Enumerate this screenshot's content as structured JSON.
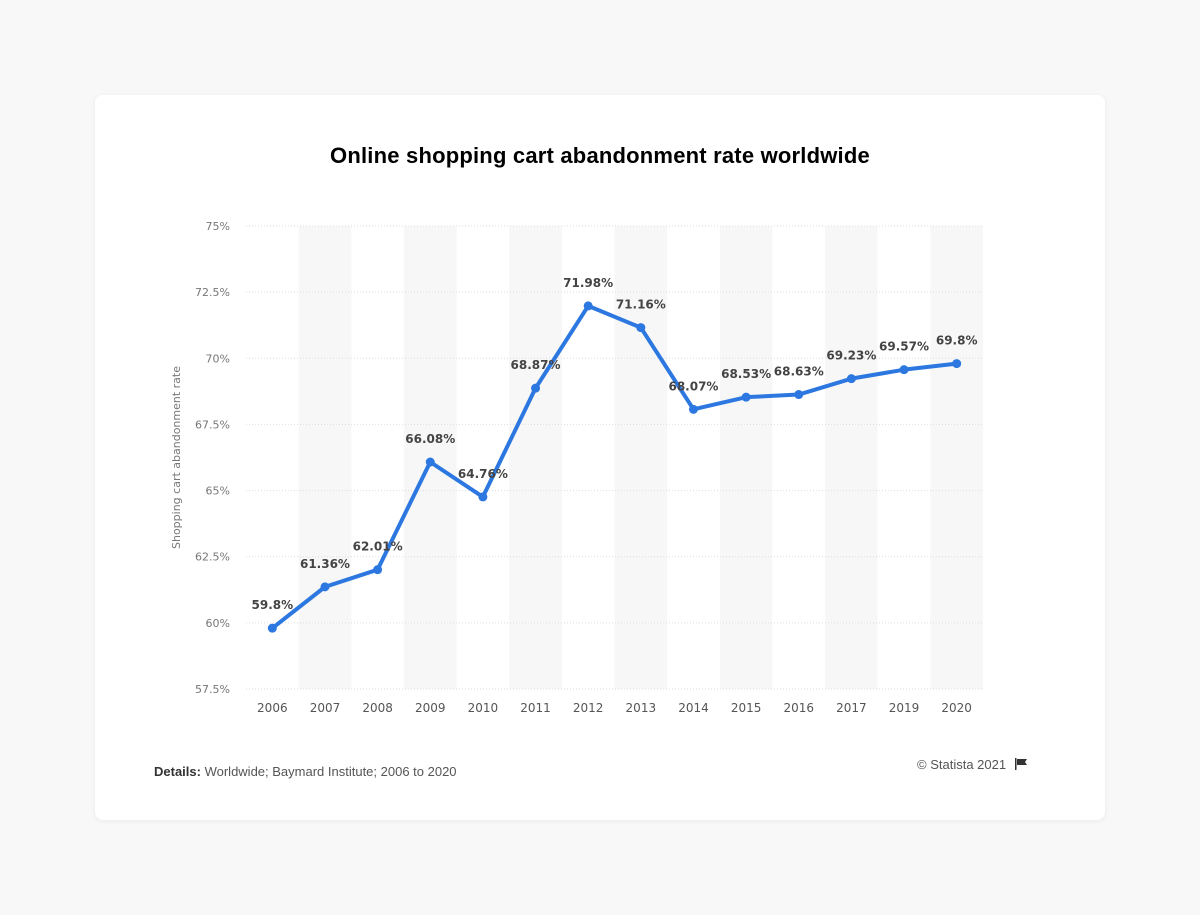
{
  "chart_data": {
    "type": "line",
    "title": "Online shopping cart abandonment rate worldwide",
    "xlabel": "",
    "ylabel": "Shopping cart abandonment rate",
    "categories": [
      "2006",
      "2007",
      "2008",
      "2009",
      "2010",
      "2011",
      "2012",
      "2013",
      "2014",
      "2015",
      "2016",
      "2017",
      "2019",
      "2020"
    ],
    "values": [
      59.8,
      61.36,
      62.01,
      66.08,
      64.76,
      68.87,
      71.98,
      71.16,
      68.07,
      68.53,
      68.63,
      69.23,
      69.57,
      69.8
    ],
    "data_labels": [
      "59.8%",
      "61.36%",
      "62.01%",
      "66.08%",
      "64.76%",
      "68.87%",
      "71.98%",
      "71.16%",
      "68.07%",
      "68.53%",
      "68.63%",
      "69.23%",
      "69.57%",
      "69.8%"
    ],
    "ylim": [
      57.5,
      75
    ],
    "yticks": [
      57.5,
      60,
      62.5,
      65,
      67.5,
      70,
      72.5,
      75
    ],
    "ytick_labels": [
      "57.5%",
      "60%",
      "62.5%",
      "65%",
      "67.5%",
      "70%",
      "72.5%",
      "75%"
    ],
    "grid": true,
    "alternating_column_shading": true,
    "line_color": "#2c78e0"
  },
  "footer": {
    "details_label": "Details:",
    "details_text": " Worldwide; Baymard Institute; 2006 to 2020",
    "credit": "© Statista 2021",
    "flag_icon": "flag-icon"
  }
}
